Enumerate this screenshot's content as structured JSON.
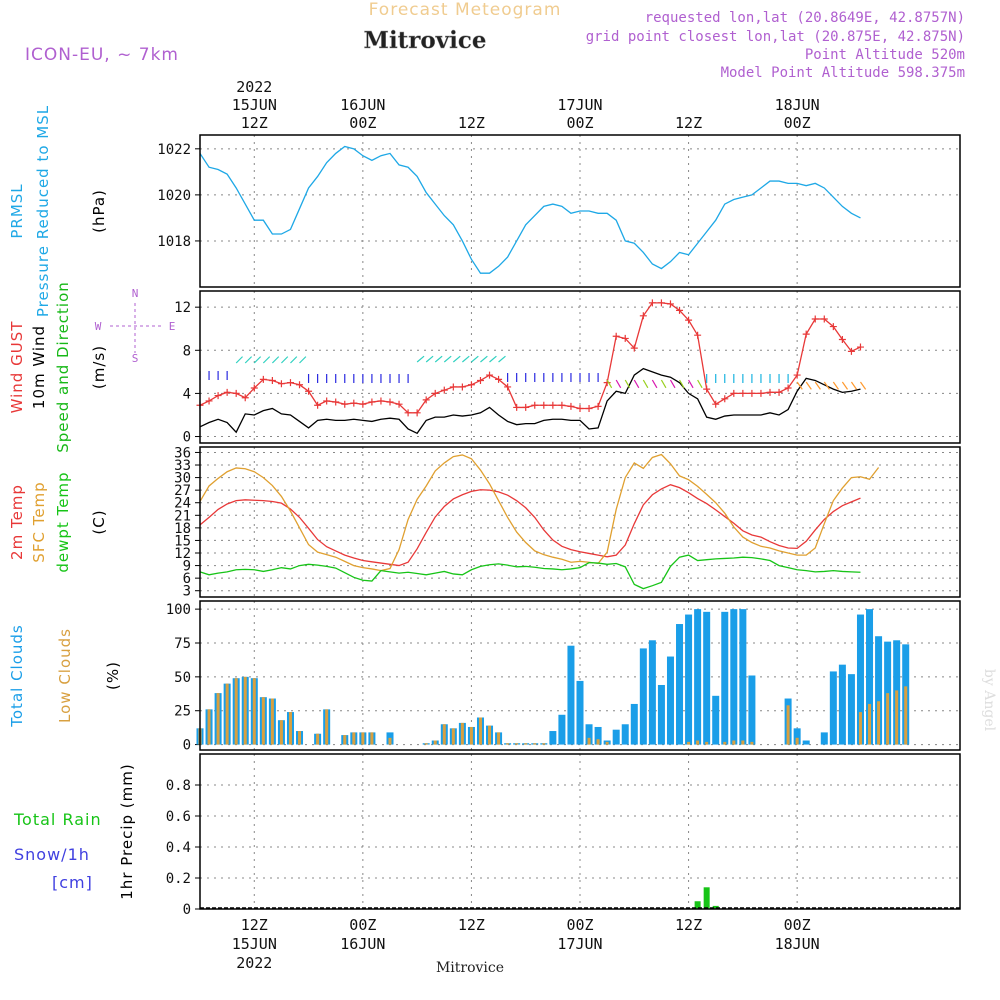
{
  "header": {
    "forecast_label": "Forecast Meteogram",
    "location": "Mitrovice",
    "model": "ICON-EU, ~ 7km",
    "requested": "requested lon,lat (20.8649E, 42.8757N)",
    "grid_point": "grid point closest lon,lat (20.875E, 42.875N)",
    "point_altitude": "Point Altitude 520m",
    "model_altitude": "Model Point Altitude 598.375m"
  },
  "footer": {
    "location": "Mitrovice"
  },
  "watermark": "by Angel",
  "wind_legend": {
    "n": "N",
    "w": "W",
    "e": "E",
    "s": "S"
  },
  "colors": {
    "pressure": "#1ea8e6",
    "gust": "#e83838",
    "wind": "#000000",
    "barbs": "#17b817",
    "temp2m": "#e83838",
    "sfc": "#e0a030",
    "dewpt": "#17c417",
    "total_clouds": "#1a9ee8",
    "low_clouds": "#d8a040",
    "rain": "#17c417",
    "snow": "#4040e0",
    "meta": "#b060d0",
    "title_fade": "#f0cc90"
  },
  "chart_data": {
    "x_axis": {
      "unit": "hours since 15JUN 00Z",
      "range": [
        6,
        90
      ],
      "ticks": [
        {
          "hour": 12,
          "top": [
            "2022",
            "15JUN",
            "12Z"
          ],
          "bottom": [
            "12Z",
            "15JUN",
            "2022"
          ]
        },
        {
          "hour": 24,
          "top": [
            "16JUN",
            "00Z"
          ],
          "bottom": [
            "00Z",
            "16JUN"
          ]
        },
        {
          "hour": 36,
          "top": [
            "12Z"
          ],
          "bottom": [
            "12Z"
          ]
        },
        {
          "hour": 48,
          "top": [
            "17JUN",
            "00Z"
          ],
          "bottom": [
            "00Z",
            "17JUN"
          ]
        },
        {
          "hour": 60,
          "top": [
            "12Z"
          ],
          "bottom": [
            "12Z"
          ]
        },
        {
          "hour": 72,
          "top": [
            "18JUN",
            "00Z"
          ],
          "bottom": [
            "00Z",
            "18JUN"
          ]
        }
      ]
    },
    "panels": [
      {
        "id": "pressure",
        "type": "line",
        "ylabels": [
          {
            "text": "PRMSL",
            "color": "pressure"
          },
          {
            "text": "Pressure Reduced to MSL",
            "color": "pressure"
          },
          {
            "text": "(hPa)",
            "color": "wind"
          }
        ],
        "ylim": [
          1016,
          1022.6
        ],
        "yticks": [
          1018,
          1020,
          1022
        ],
        "series": [
          {
            "name": "PRMSL",
            "color": "pressure",
            "values": [
              1021.8,
              1021.2,
              1021.1,
              1020.9,
              1020.3,
              1019.6,
              1018.9,
              1018.9,
              1018.3,
              1018.3,
              1018.5,
              1019.4,
              1020.3,
              1020.8,
              1021.4,
              1021.8,
              1022.1,
              1022.0,
              1021.7,
              1021.5,
              1021.7,
              1021.8,
              1021.3,
              1021.2,
              1020.8,
              1020.1,
              1019.6,
              1019.1,
              1018.7,
              1018.0,
              1017.2,
              1016.6,
              1016.6,
              1016.9,
              1017.3,
              1018.0,
              1018.7,
              1019.1,
              1019.5,
              1019.6,
              1019.5,
              1019.2,
              1019.3,
              1019.3,
              1019.2,
              1019.2,
              1018.9,
              1018.0,
              1017.9,
              1017.5,
              1017.0,
              1016.8,
              1017.1,
              1017.5,
              1017.4,
              1017.9,
              1018.4,
              1018.9,
              1019.6,
              1019.8,
              1019.9,
              1020.0,
              1020.3,
              1020.6,
              1020.6,
              1020.5,
              1020.5,
              1020.4,
              1020.5,
              1020.3,
              1019.9,
              1019.5,
              1019.2,
              1019.0
            ]
          }
        ]
      },
      {
        "id": "wind",
        "type": "line",
        "ylabels": [
          {
            "text": "Wind GUST",
            "color": "gust"
          },
          {
            "text": "10m Wind",
            "color": "wind"
          },
          {
            "text": "Speed and Direction",
            "color": "barbs"
          },
          {
            "text": "(m/s)",
            "color": "wind"
          }
        ],
        "ylim": [
          -0.6,
          13.5
        ],
        "yticks": [
          0,
          4,
          8,
          12
        ],
        "series": [
          {
            "name": "Wind GUST",
            "color": "gust",
            "marker": "+",
            "values": [
              2.9,
              3.3,
              3.8,
              4.1,
              4.0,
              3.6,
              4.5,
              5.3,
              5.2,
              4.9,
              5.0,
              4.8,
              4.2,
              2.9,
              3.3,
              3.2,
              3.0,
              3.1,
              3.0,
              3.2,
              3.3,
              3.2,
              3.0,
              2.2,
              2.2,
              3.4,
              4.0,
              4.3,
              4.6,
              4.6,
              4.8,
              5.2,
              5.7,
              5.3,
              4.6,
              2.7,
              2.7,
              2.9,
              2.9,
              2.9,
              2.9,
              2.8,
              2.6,
              2.6,
              2.8,
              5.0,
              9.3,
              9.1,
              8.2,
              11.2,
              12.4,
              12.4,
              12.3,
              11.7,
              10.8,
              9.4,
              4.4,
              3.0,
              3.5,
              4.0,
              4.0,
              4.0,
              4.0,
              4.1,
              4.1,
              4.5,
              5.7,
              9.5,
              10.9,
              10.9,
              10.2,
              9.0,
              7.9,
              8.3
            ]
          },
          {
            "name": "10m Wind",
            "color": "wind",
            "values": [
              0.9,
              1.3,
              1.6,
              1.3,
              0.4,
              2.1,
              2.0,
              2.4,
              2.6,
              2.1,
              2.0,
              1.4,
              0.8,
              1.5,
              1.6,
              1.5,
              1.5,
              1.6,
              1.5,
              1.4,
              1.6,
              1.7,
              1.6,
              0.7,
              0.3,
              1.5,
              1.8,
              1.8,
              2.0,
              1.9,
              2.0,
              2.2,
              2.7,
              2.0,
              1.4,
              1.1,
              1.2,
              1.2,
              1.5,
              1.6,
              1.6,
              1.5,
              1.5,
              0.7,
              0.8,
              3.3,
              4.2,
              4.0,
              5.7,
              6.3,
              6.0,
              5.7,
              5.5,
              5.0,
              4.0,
              3.5,
              1.8,
              1.6,
              1.9,
              2.0,
              2.0,
              2.0,
              2.0,
              2.2,
              2.0,
              2.5,
              4.2,
              5.4,
              5.2,
              4.8,
              4.4,
              4.1,
              4.2,
              4.4
            ]
          }
        ]
      },
      {
        "id": "temperature",
        "type": "line",
        "ylabels": [
          {
            "text": "2m Temp",
            "color": "temp2m"
          },
          {
            "text": "SFC Temp",
            "color": "sfc"
          },
          {
            "text": "dewpt Temp",
            "color": "dewpt"
          },
          {
            "text": "(C)",
            "color": "wind"
          }
        ],
        "ylim": [
          1.5,
          37.3
        ],
        "yticks": [
          3,
          6,
          9,
          12,
          15,
          18,
          21,
          24,
          27,
          30,
          33,
          36
        ],
        "series": [
          {
            "name": "2m Temp",
            "color": "temp2m",
            "values": [
              18.7,
              20.5,
              22.4,
              23.7,
              24.5,
              24.7,
              24.6,
              24.5,
              24.3,
              23.9,
              22.5,
              20.5,
              17.9,
              15.2,
              13.5,
              12.5,
              11.5,
              10.8,
              10.2,
              9.9,
              9.6,
              9.3,
              9.0,
              9.8,
              13.0,
              16.9,
              20.6,
              23.1,
              24.9,
              25.9,
              26.7,
              27.1,
              27.0,
              26.6,
              25.8,
              24.5,
              22.8,
              20.5,
              17.5,
              15.1,
              13.6,
              12.8,
              12.3,
              11.9,
              11.5,
              11.1,
              11.5,
              13.9,
              19.0,
              23.5,
              25.9,
              27.3,
              28.3,
              27.6,
              26.4,
              25.0,
              23.8,
              22.3,
              20.7,
              19.1,
              17.3,
              16.3,
              15.8,
              14.7,
              13.8,
              13.2,
              13.1,
              14.8,
              17.5,
              20.0,
              21.9,
              23.3,
              24.2,
              25.1
            ]
          },
          {
            "name": "SFC Temp",
            "color": "sfc",
            "values": [
              24.3,
              28.0,
              29.8,
              31.4,
              32.3,
              32.1,
              31.4,
              30.0,
              28.1,
              25.5,
              22.0,
              18.0,
              14.0,
              12.2,
              11.6,
              11.0,
              10.0,
              9.0,
              8.5,
              8.2,
              7.8,
              8.3,
              12.8,
              20.0,
              24.8,
              28.0,
              31.6,
              33.5,
              35.0,
              35.4,
              34.5,
              31.8,
              28.5,
              24.5,
              20.5,
              17.0,
              14.5,
              12.5,
              11.6,
              11.0,
              10.5,
              9.8,
              10.0,
              9.8,
              9.5,
              12.2,
              22.4,
              30.0,
              33.5,
              32.2,
              34.8,
              35.5,
              33.3,
              30.4,
              29.5,
              27.9,
              26.0,
              24.0,
              21.5,
              18.2,
              15.8,
              14.5,
              13.6,
              13.2,
              12.5,
              12.0,
              11.5,
              11.5,
              13.2,
              19.0,
              24.5,
              27.5,
              30.0,
              30.2,
              29.6,
              32.4
            ]
          },
          {
            "name": "dewpt Temp",
            "color": "dewpt",
            "values": [
              7.5,
              6.8,
              7.2,
              7.5,
              8.0,
              8.1,
              8.0,
              7.6,
              8.0,
              8.5,
              8.2,
              9.0,
              9.3,
              9.1,
              8.8,
              8.4,
              7.3,
              6.2,
              5.5,
              5.3,
              7.8,
              7.5,
              7.2,
              7.4,
              7.1,
              6.8,
              7.2,
              7.6,
              7.0,
              6.8,
              8.0,
              8.8,
              9.2,
              9.4,
              9.1,
              8.7,
              8.8,
              8.6,
              8.3,
              8.2,
              8.0,
              8.2,
              8.5,
              9.7,
              9.6,
              9.3,
              9.5,
              8.7,
              4.5,
              3.5,
              4.2,
              5.0,
              8.8,
              11.0,
              11.5,
              10.2,
              10.4,
              10.6,
              10.7,
              10.8,
              11.0,
              10.9,
              10.6,
              10.2,
              9.0,
              8.5,
              8.0,
              7.8,
              7.5,
              7.6,
              7.8,
              7.6,
              7.5,
              7.4
            ]
          }
        ]
      },
      {
        "id": "clouds",
        "type": "bar",
        "ylabels": [
          {
            "text": "Total Clouds",
            "color": "total_clouds"
          },
          {
            "text": "Low Clouds",
            "color": "low_clouds"
          },
          {
            "text": "(%)",
            "color": "wind"
          }
        ],
        "ylim": [
          -4,
          106
        ],
        "yticks": [
          0,
          25,
          50,
          75,
          100
        ],
        "series": [
          {
            "name": "Total Clouds",
            "color": "total_clouds",
            "values": [
              12,
              26,
              38,
              45,
              49,
              50,
              49,
              35,
              34,
              18,
              24,
              10,
              0,
              8,
              26,
              0,
              7,
              9,
              9,
              9,
              0,
              9,
              0,
              0,
              0,
              1,
              3,
              15,
              12,
              16,
              13,
              20,
              14,
              9,
              1,
              1,
              1,
              1,
              1,
              10,
              22,
              73,
              47,
              15,
              13,
              3,
              11,
              15,
              30,
              71,
              77,
              44,
              65,
              89,
              96,
              100,
              98,
              36,
              98,
              100,
              100,
              51,
              0,
              0,
              0,
              34,
              12,
              3,
              0,
              9,
              54,
              59,
              52,
              96,
              100,
              80,
              76,
              77,
              74
            ]
          },
          {
            "name": "Low Clouds",
            "color": "low_clouds",
            "values": [
              12,
              26,
              38,
              45,
              49,
              50,
              49,
              35,
              34,
              18,
              24,
              10,
              0,
              8,
              26,
              0,
              7,
              9,
              9,
              9,
              0,
              5,
              0,
              0,
              0,
              1,
              3,
              15,
              12,
              16,
              13,
              20,
              14,
              9,
              1,
              1,
              1,
              1,
              1,
              0,
              0,
              0,
              0,
              5,
              4,
              2,
              0,
              0,
              0,
              0,
              0,
              0,
              0,
              0,
              2,
              3,
              2,
              0,
              2,
              3,
              3,
              2,
              0,
              0,
              0,
              29,
              5,
              0,
              0,
              0,
              0,
              0,
              0,
              24,
              30,
              32,
              38,
              40,
              43
            ]
          }
        ]
      },
      {
        "id": "precip",
        "type": "bar",
        "ylabels": [
          {
            "text": "1hr Precip (mm)",
            "color": "wind"
          }
        ],
        "side_labels": [
          {
            "text": "Total  Rain",
            "color": "rain"
          },
          {
            "text": "Snow/1h",
            "color": "snow"
          },
          {
            "text": "[cm]",
            "color": "snow"
          }
        ],
        "ylim": [
          0,
          1.0
        ],
        "yticks": [
          0,
          0.2,
          0.4,
          0.6,
          0.8
        ],
        "series": [
          {
            "name": "Total Rain",
            "color": "rain",
            "hours": [
              61,
              62,
              63
            ],
            "values": [
              0.05,
              0.14,
              0.02
            ]
          }
        ]
      }
    ]
  }
}
